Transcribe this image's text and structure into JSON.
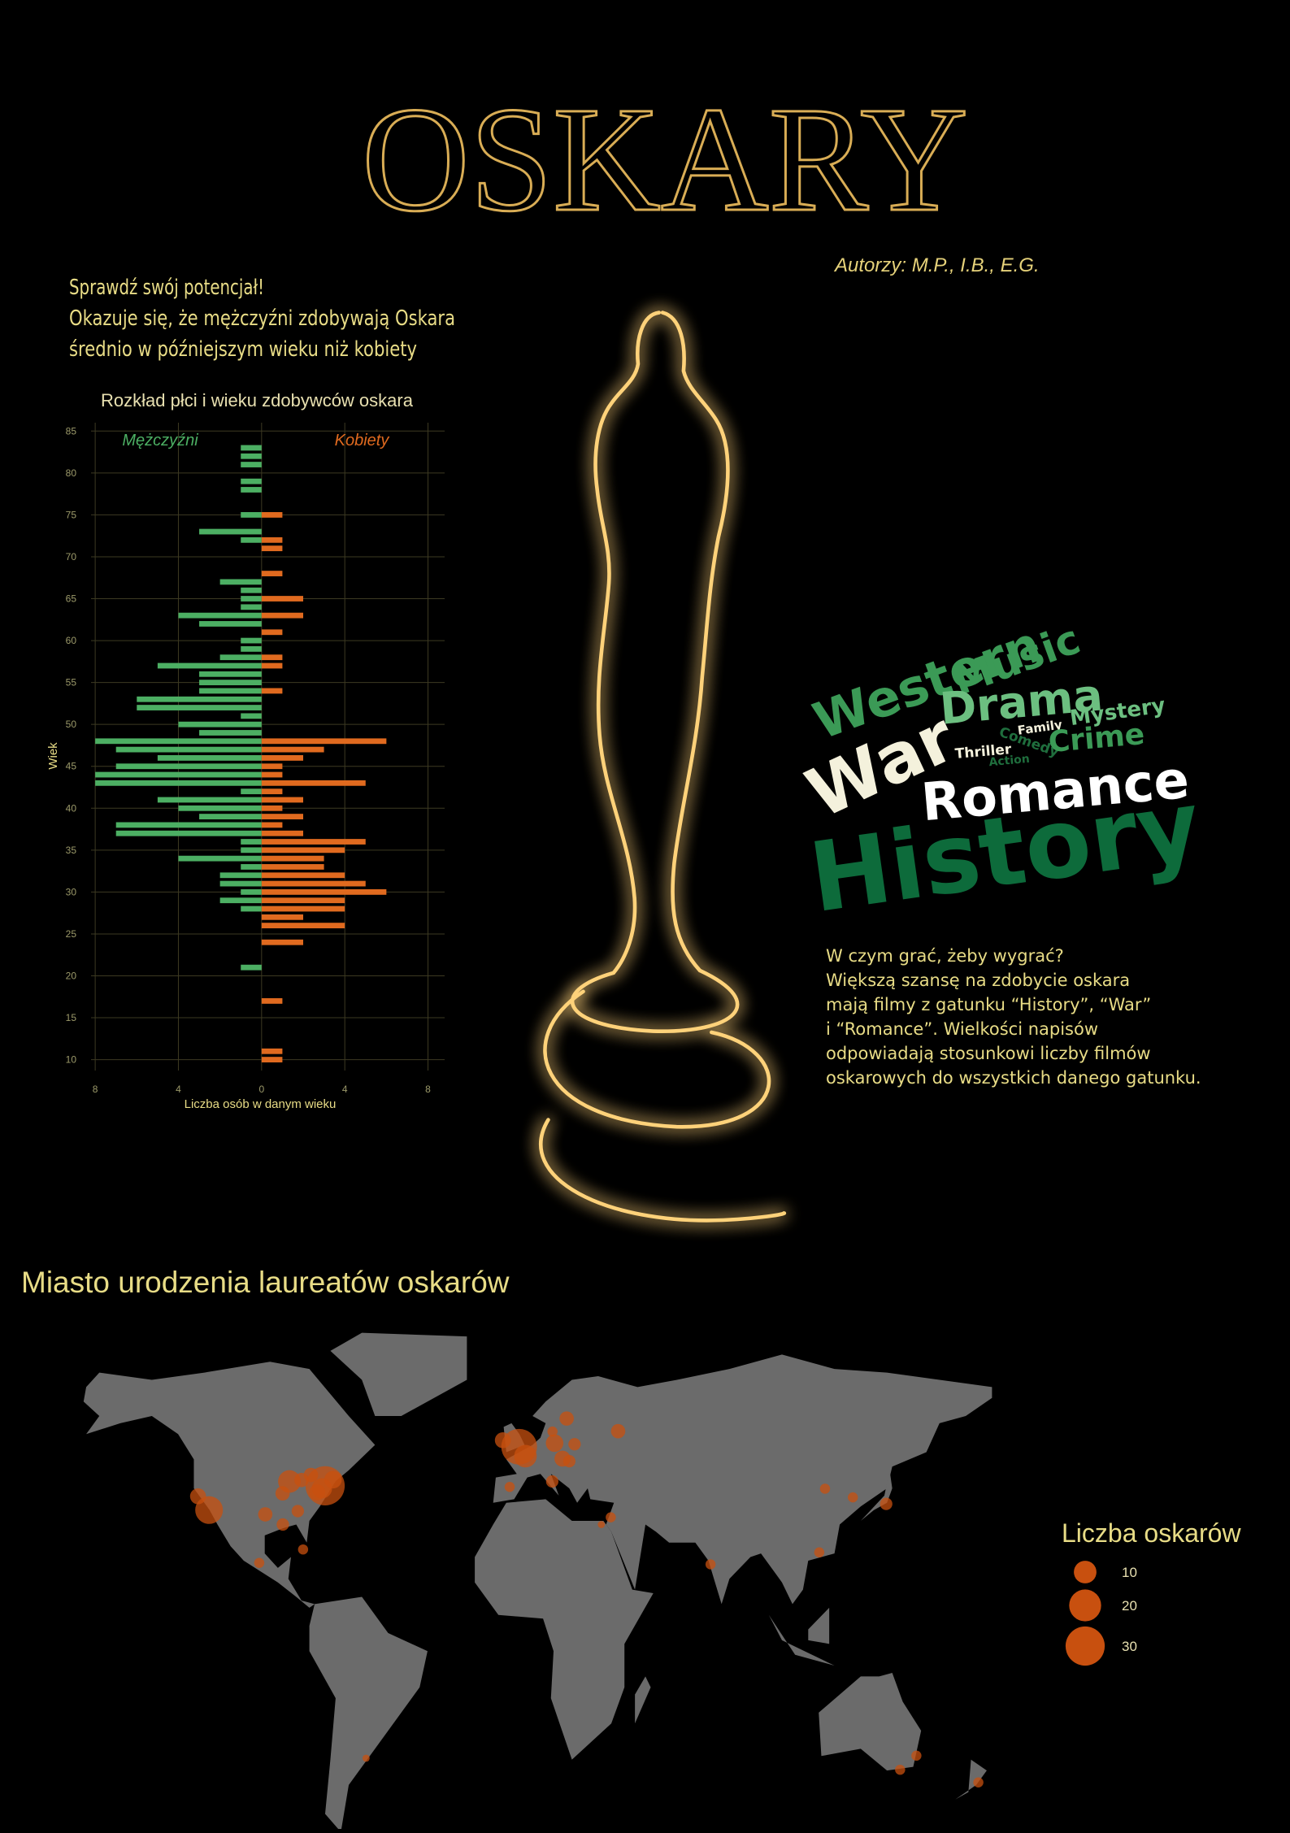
{
  "header": {
    "title": "OSKARY",
    "authors": "Autorzy: M.P., I.B., E.G."
  },
  "intro": [
    "Sprawdź swój potencjał!",
    "Okazuje się, że mężczyźni zdobywają Oskara",
    "średnio w późniejszym wieku niż kobiety"
  ],
  "chart_data": {
    "type": "bar",
    "orientation": "horizontal",
    "title": "Rozkład płci i wieku zdobywców oskara",
    "xlabel": "Liczba osób w danym wieku",
    "ylabel": "Wiek",
    "y": [
      10,
      11,
      12,
      13,
      14,
      15,
      16,
      17,
      18,
      19,
      20,
      21,
      22,
      23,
      24,
      25,
      26,
      27,
      28,
      29,
      30,
      31,
      32,
      33,
      34,
      35,
      36,
      37,
      38,
      39,
      40,
      41,
      42,
      43,
      44,
      45,
      46,
      47,
      48,
      49,
      50,
      51,
      52,
      53,
      54,
      55,
      56,
      57,
      58,
      59,
      60,
      61,
      62,
      63,
      64,
      65,
      66,
      67,
      68,
      69,
      70,
      71,
      72,
      73,
      74,
      75,
      76,
      77,
      78,
      79,
      80,
      81,
      82,
      83,
      84
    ],
    "series": [
      {
        "name": "Mężczyźni",
        "color": "#4caf63",
        "values": [
          0,
          0,
          0,
          0,
          0,
          0,
          0,
          0,
          0,
          0,
          0,
          -1,
          0,
          0,
          0,
          0,
          0,
          0,
          -1,
          -2,
          -1,
          -2,
          -2,
          -1,
          -4,
          -1,
          -1,
          -7,
          -7,
          -3,
          -4,
          -5,
          -1,
          -8,
          -8,
          -7,
          -5,
          -7,
          -8,
          -3,
          -4,
          -1,
          -6,
          -6,
          -3,
          -3,
          -3,
          -5,
          -2,
          -1,
          -1,
          0,
          -3,
          -4,
          -1,
          -1,
          -1,
          -2,
          0,
          0,
          0,
          0,
          -1,
          -3,
          0,
          -1,
          0,
          0,
          -1,
          -1,
          0,
          -1,
          -1,
          -1,
          0
        ]
      },
      {
        "name": "Kobiety",
        "color": "#e06a1f",
        "values": [
          1,
          1,
          0,
          0,
          0,
          0,
          0,
          1,
          0,
          0,
          0,
          0,
          0,
          0,
          2,
          0,
          4,
          2,
          4,
          4,
          6,
          5,
          4,
          3,
          3,
          4,
          5,
          2,
          1,
          2,
          1,
          2,
          1,
          5,
          1,
          1,
          2,
          3,
          6,
          0,
          0,
          0,
          0,
          0,
          1,
          0,
          0,
          1,
          1,
          0,
          0,
          1,
          0,
          2,
          0,
          2,
          0,
          0,
          1,
          0,
          0,
          1,
          1,
          0,
          0,
          1,
          0,
          0,
          0,
          0,
          0,
          0,
          0,
          0,
          0
        ]
      }
    ],
    "xlim": [
      -8.2,
      8.8
    ],
    "ylim": [
      8.7,
      86
    ],
    "xticks": [
      {
        "value": -8,
        "label": "8"
      },
      {
        "value": -4,
        "label": "4"
      },
      0,
      4,
      8
    ],
    "yticks": [
      10,
      15,
      20,
      25,
      30,
      35,
      40,
      45,
      50,
      55,
      60,
      65,
      70,
      75,
      80,
      85
    ],
    "grid": true
  },
  "genres": {
    "words": [
      "Western",
      "Music",
      "Drama",
      "Mystery",
      "War",
      "Family",
      "Comedy",
      "Thriller",
      "Crime",
      "Action",
      "Romance",
      "History"
    ],
    "text": [
      "W czym grać, żeby wygrać?",
      "Większą szansę na zdobycie oskara",
      "mają filmy z gatunku “History”, “War”",
      "i “Romance”. Wielkości napisów",
      "odpowiadają stosunkowi liczby filmów",
      "oskarowych do wszystkich danego gatunku."
    ]
  },
  "map": {
    "title": "Miasto urodzenia laureatów oskarów",
    "legend_title": "Liczba oskarów",
    "legend_values": [
      10,
      20,
      30
    ],
    "color": "#c8500f",
    "points": [
      {
        "lon": -74,
        "lat": 40.7,
        "value": 30
      },
      {
        "lon": -118.2,
        "lat": 34,
        "value": 15
      },
      {
        "lon": -87.6,
        "lat": 41.9,
        "value": 10
      },
      {
        "lon": -0.1,
        "lat": 51.5,
        "value": 25
      },
      {
        "lon": 2.3,
        "lat": 48.9,
        "value": 10
      },
      {
        "lon": 13.4,
        "lat": 52.5,
        "value": 6
      },
      {
        "lon": -75.2,
        "lat": 40,
        "value": 8
      },
      {
        "lon": -71,
        "lat": 42.4,
        "value": 6
      },
      {
        "lon": -122.4,
        "lat": 37.8,
        "value": 5
      },
      {
        "lon": -79.4,
        "lat": 43.7,
        "value": 4
      },
      {
        "lon": 37.6,
        "lat": 55.8,
        "value": 4
      },
      {
        "lon": 18,
        "lat": 59.3,
        "value": 4
      },
      {
        "lon": 16.4,
        "lat": 48.2,
        "value": 5
      },
      {
        "lon": 12.5,
        "lat": 41.9,
        "value": 3
      },
      {
        "lon": 19,
        "lat": 47.5,
        "value": 3
      },
      {
        "lon": 139.7,
        "lat": 35.7,
        "value": 3
      },
      {
        "lon": -99.1,
        "lat": 19.4,
        "value": 2
      },
      {
        "lon": 151.2,
        "lat": -33.9,
        "value": 2
      },
      {
        "lon": 145,
        "lat": -37.8,
        "value": 2
      },
      {
        "lon": 174.8,
        "lat": -41.3,
        "value": 2
      },
      {
        "lon": 72.8,
        "lat": 19,
        "value": 2
      },
      {
        "lon": 34.8,
        "lat": 32,
        "value": 2
      },
      {
        "lon": -84.4,
        "lat": 33.7,
        "value": 3
      },
      {
        "lon": -77,
        "lat": 38.9,
        "value": 5
      },
      {
        "lon": -82.4,
        "lat": 23.1,
        "value": 2
      },
      {
        "lon": -6.3,
        "lat": 53.3,
        "value": 5
      },
      {
        "lon": -3.7,
        "lat": 40.4,
        "value": 2
      },
      {
        "lon": 21,
        "lat": 52.2,
        "value": 3
      },
      {
        "lon": 12.6,
        "lat": 55.7,
        "value": 2
      },
      {
        "lon": 127,
        "lat": 37.5,
        "value": 2
      },
      {
        "lon": 116.4,
        "lat": 39.9,
        "value": 2
      },
      {
        "lon": 114.2,
        "lat": 22.3,
        "value": 2
      },
      {
        "lon": -58.4,
        "lat": -34.6,
        "value": 1
      },
      {
        "lon": 31.2,
        "lat": 30,
        "value": 1
      },
      {
        "lon": -96.8,
        "lat": 32.8,
        "value": 4
      },
      {
        "lon": -90.2,
        "lat": 38.6,
        "value": 4
      },
      {
        "lon": -90.1,
        "lat": 30,
        "value": 3
      },
      {
        "lon": -83,
        "lat": 42.3,
        "value": 4
      }
    ]
  }
}
